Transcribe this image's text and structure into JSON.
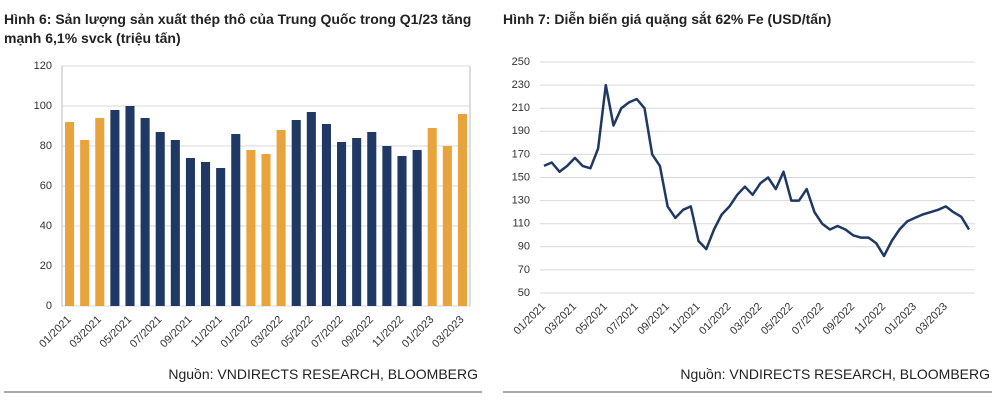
{
  "chart_data": [
    {
      "type": "bar",
      "title": "Hình 6: Sản lượng sản xuất thép thô của Trung Quốc trong Q1/23 tăng mạnh 6,1% svck (triệu tấn)",
      "source": "Nguồn: VNDIRECTS RESEARCH, BLOOMBERG",
      "categories": [
        "01/2021",
        null,
        "03/2021",
        null,
        "05/2021",
        null,
        "07/2021",
        null,
        "09/2021",
        null,
        "11/2021",
        null,
        "01/2022",
        null,
        "03/2022",
        null,
        "05/2022",
        null,
        "07/2022",
        null,
        "09/2022",
        null,
        "11/2022",
        null,
        "01/2023",
        null,
        "03/2023"
      ],
      "values": [
        92,
        83,
        94,
        98,
        100,
        94,
        87,
        83,
        74,
        72,
        69,
        86,
        78,
        76,
        88,
        93,
        97,
        91,
        82,
        84,
        87,
        80,
        75,
        78,
        89,
        80,
        96
      ],
      "colors": [
        "#e8a33c",
        "#e8a33c",
        "#e8a33c",
        "#1f3864",
        "#1f3864",
        "#1f3864",
        "#1f3864",
        "#1f3864",
        "#1f3864",
        "#1f3864",
        "#1f3864",
        "#1f3864",
        "#e8a33c",
        "#e8a33c",
        "#e8a33c",
        "#1f3864",
        "#1f3864",
        "#1f3864",
        "#1f3864",
        "#1f3864",
        "#1f3864",
        "#1f3864",
        "#1f3864",
        "#1f3864",
        "#e8a33c",
        "#e8a33c",
        "#e8a33c"
      ],
      "ylim": [
        0,
        120
      ],
      "yticks": [
        0,
        20,
        40,
        60,
        80,
        100,
        120
      ],
      "grid": true
    },
    {
      "type": "line",
      "title": "Hình 7: Diễn biến giá quặng sắt 62% Fe (USD/tấn)",
      "source": "Nguồn: VNDIRECTS RESEARCH, BLOOMBERG",
      "categories": [
        "01/2021",
        null,
        null,
        null,
        "03/2021",
        null,
        null,
        null,
        "05/2021",
        null,
        null,
        null,
        "07/2021",
        null,
        null,
        null,
        "09/2021",
        null,
        null,
        null,
        "11/2021",
        null,
        null,
        null,
        "01/2022",
        null,
        null,
        null,
        "03/2022",
        null,
        null,
        null,
        "05/2022",
        null,
        null,
        null,
        "07/2022",
        null,
        null,
        null,
        "09/2022",
        null,
        null,
        null,
        "11/2022",
        null,
        null,
        null,
        "01/2023",
        null,
        null,
        null,
        "03/2023",
        null,
        null,
        null
      ],
      "series": [
        {
          "name": "62% Fe",
          "color": "#1f3864",
          "values": [
            160,
            163,
            155,
            160,
            167,
            160,
            158,
            175,
            230,
            195,
            210,
            215,
            218,
            210,
            170,
            160,
            125,
            115,
            122,
            125,
            95,
            88,
            105,
            118,
            125,
            135,
            142,
            135,
            145,
            150,
            140,
            155,
            130,
            130,
            140,
            120,
            110,
            105,
            108,
            105,
            100,
            98,
            98,
            93,
            82,
            95,
            105,
            112,
            115,
            118,
            120,
            122,
            125,
            120,
            116,
            105
          ]
        }
      ],
      "ylim": [
        50,
        250
      ],
      "yticks": [
        50,
        70,
        90,
        110,
        130,
        150,
        170,
        190,
        210,
        230,
        250
      ],
      "grid": true
    }
  ]
}
